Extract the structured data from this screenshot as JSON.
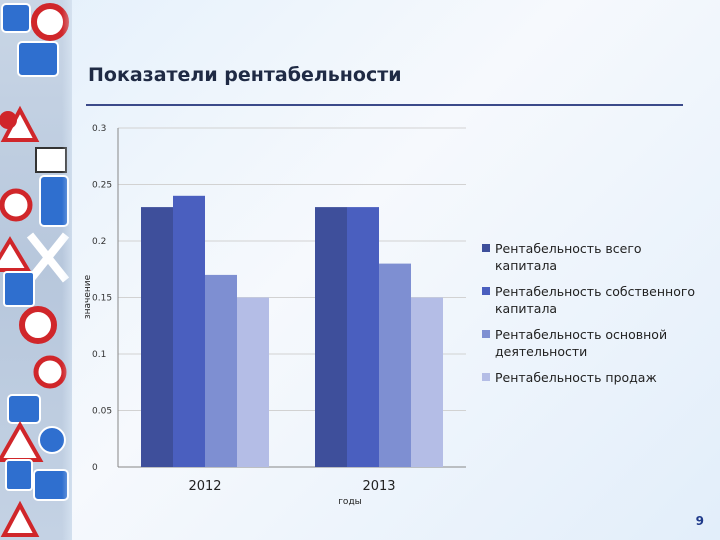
{
  "slide": {
    "title": "Показатели рентабельности",
    "page_number": "9"
  },
  "chart_data": {
    "type": "bar",
    "categories": [
      "2012",
      "2013"
    ],
    "series": [
      {
        "name": "Рентабельность всего капитала",
        "values": [
          0.23,
          0.23
        ],
        "color": "#3e4f9b"
      },
      {
        "name": "Рентабельность собственного капитала",
        "values": [
          0.24,
          0.23
        ],
        "color": "#4a5fbf"
      },
      {
        "name": "Рентабельность основной деятельности",
        "values": [
          0.17,
          0.18
        ],
        "color": "#7e8fd2"
      },
      {
        "name": "Рентабельность продаж",
        "values": [
          0.15,
          0.15
        ],
        "color": "#b4bde6"
      }
    ],
    "yticks": [
      "0",
      "0.05",
      "0.1",
      "0.15",
      "0.2",
      "0.25",
      "0.3"
    ],
    "ylim": [
      0,
      0.3
    ],
    "xlabel": "годы",
    "ylabel": "значение",
    "grid": true,
    "legend_position": "right"
  }
}
